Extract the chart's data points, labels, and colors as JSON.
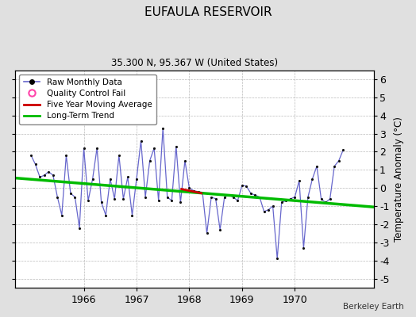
{
  "title": "EUFAULA RESERVOIR",
  "subtitle": "35.300 N, 95.367 W (United States)",
  "credit": "Berkeley Earth",
  "ylabel": "Temperature Anomaly (°C)",
  "ylim": [
    -5.5,
    6.5
  ],
  "yticks": [
    -5,
    -4,
    -3,
    -2,
    -1,
    0,
    1,
    2,
    3,
    4,
    5,
    6
  ],
  "xlim": [
    1964.7,
    1971.5
  ],
  "xticks": [
    1966,
    1967,
    1968,
    1969,
    1970
  ],
  "fig_bg": "#e0e0e0",
  "plot_bg": "#ffffff",
  "raw_color": "#6666cc",
  "raw_dot_color": "#111111",
  "moving_avg_color": "#cc0000",
  "trend_color": "#00bb00",
  "raw_data_x": [
    1965.0,
    1965.083,
    1965.167,
    1965.25,
    1965.333,
    1965.417,
    1965.5,
    1965.583,
    1965.667,
    1965.75,
    1965.833,
    1965.917,
    1966.0,
    1966.083,
    1966.167,
    1966.25,
    1966.333,
    1966.417,
    1966.5,
    1966.583,
    1966.667,
    1966.75,
    1966.833,
    1966.917,
    1967.0,
    1967.083,
    1967.167,
    1967.25,
    1967.333,
    1967.417,
    1967.5,
    1967.583,
    1967.667,
    1967.75,
    1967.833,
    1967.917,
    1968.0,
    1968.083,
    1968.167,
    1968.25,
    1968.333,
    1968.417,
    1968.5,
    1968.583,
    1968.667,
    1968.75,
    1968.833,
    1968.917,
    1969.0,
    1969.083,
    1969.167,
    1969.25,
    1969.333,
    1969.417,
    1969.5,
    1969.583,
    1969.667,
    1969.75,
    1969.833,
    1969.917,
    1970.0,
    1970.083,
    1970.167,
    1970.25,
    1970.333,
    1970.417,
    1970.5,
    1970.583,
    1970.667,
    1970.75,
    1970.833,
    1970.917
  ],
  "raw_data_y": [
    1.8,
    1.3,
    0.6,
    0.7,
    0.9,
    0.7,
    -0.5,
    -1.5,
    1.8,
    -0.3,
    -0.5,
    -2.2,
    2.2,
    -0.7,
    0.5,
    2.2,
    -0.8,
    -1.5,
    0.5,
    -0.6,
    1.8,
    -0.6,
    0.6,
    -1.5,
    0.5,
    2.6,
    -0.5,
    1.5,
    2.2,
    -0.7,
    3.3,
    -0.5,
    -0.7,
    2.3,
    -0.8,
    1.5,
    0.0,
    -0.15,
    -0.2,
    -0.25,
    -2.5,
    -0.5,
    -0.6,
    -2.3,
    -0.5,
    -0.4,
    -0.5,
    -0.7,
    0.15,
    0.1,
    -0.3,
    -0.4,
    -0.5,
    -1.3,
    -1.2,
    -1.0,
    -3.9,
    -0.8,
    -0.7,
    -0.6,
    -0.5,
    0.4,
    -3.3,
    -0.5,
    0.5,
    1.2,
    -0.6,
    -0.8,
    -0.6,
    1.2,
    1.5,
    2.1
  ],
  "moving_avg_x": [
    1967.833,
    1967.917,
    1968.0,
    1968.083,
    1968.167,
    1968.25
  ],
  "moving_avg_y": [
    -0.05,
    -0.1,
    -0.15,
    -0.2,
    -0.25,
    -0.3
  ],
  "trend_x": [
    1964.7,
    1971.5
  ],
  "trend_y": [
    0.55,
    -1.05
  ]
}
